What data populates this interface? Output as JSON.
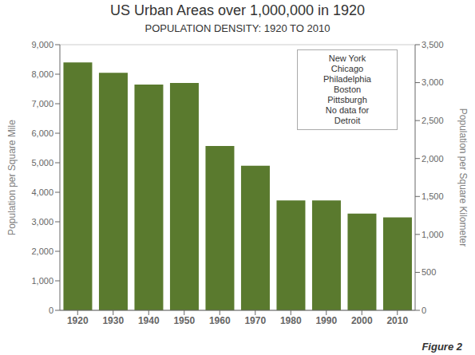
{
  "chart_data": {
    "type": "bar",
    "title": "US Urban Areas over 1,000,000 in 1920",
    "subtitle": "POPULATION DENSITY: 1920 TO 2010",
    "ylabel": "Population per Square Mile",
    "y2label": "Population per Square Kilometer",
    "categories": [
      "1920",
      "1930",
      "1940",
      "1950",
      "1960",
      "1970",
      "1980",
      "1990",
      "2000",
      "2010"
    ],
    "values": [
      8400,
      8050,
      7650,
      7700,
      5570,
      4900,
      3720,
      3720,
      3280,
      3150
    ],
    "color": "#5a7a2e",
    "ylim": [
      0,
      9000
    ],
    "yticks": [
      0,
      {
        "value": 1000,
        "label": "1,000"
      },
      {
        "value": 2000,
        "label": "2,000"
      },
      {
        "value": 3000,
        "label": "3,000"
      },
      {
        "value": 4000,
        "label": "4,000"
      },
      {
        "value": 5000,
        "label": "5,000"
      },
      {
        "value": 6000,
        "label": "6,000"
      },
      {
        "value": 7000,
        "label": "7,000"
      },
      {
        "value": 8000,
        "label": "8,000"
      },
      {
        "value": 9000,
        "label": "9,000"
      }
    ],
    "y2lim": [
      0,
      3500
    ],
    "y2ticks": [
      0,
      500,
      {
        "value": 1000,
        "label": "1,000"
      },
      {
        "value": 1500,
        "label": "1,500"
      },
      {
        "value": 2000,
        "label": "2,000"
      },
      {
        "value": 2500,
        "label": "2,500"
      },
      {
        "value": 3000,
        "label": "3,000"
      },
      {
        "value": 3500,
        "label": "3,500"
      }
    ],
    "grid": true,
    "annotations": [
      "New York\nChicago\nPhiladelphia\nBoston\nPittsburgh\nNo data for\nDetroit",
      "Figure 2"
    ]
  }
}
